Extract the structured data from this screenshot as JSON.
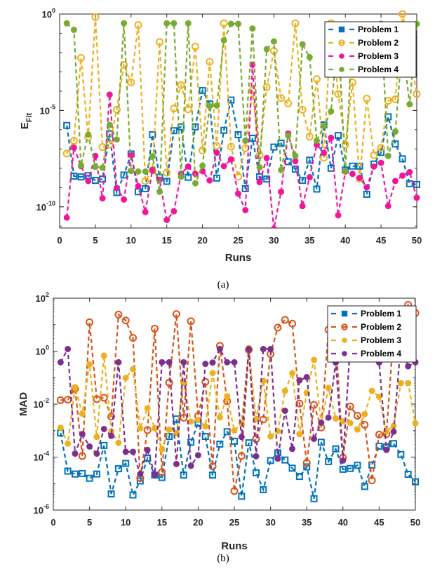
{
  "chart_data": [
    {
      "type": "line",
      "yscale": "log",
      "caption": "(a)",
      "xlabel": "Runs",
      "ylabel": "E",
      "ylabel_subscript": "Fit",
      "xlim": [
        0,
        50
      ],
      "ylim_log10": [
        -11.1,
        0
      ],
      "xticks": [
        0,
        5,
        10,
        15,
        20,
        25,
        30,
        35,
        40,
        45,
        50
      ],
      "ytick_base": "10",
      "yticks_log10": [
        0,
        -5,
        -10
      ],
      "legend_position": "top-right",
      "x": [
        1,
        2,
        3,
        4,
        5,
        6,
        7,
        8,
        9,
        10,
        11,
        12,
        13,
        14,
        15,
        16,
        17,
        18,
        19,
        20,
        21,
        22,
        23,
        24,
        25,
        26,
        27,
        28,
        29,
        30,
        31,
        32,
        33,
        34,
        35,
        36,
        37,
        38,
        39,
        40,
        41,
        42,
        43,
        44,
        45,
        46,
        47,
        48,
        49,
        50
      ],
      "series": [
        {
          "name": "Problem 1",
          "color": "#0072BD",
          "marker": "square-open",
          "values_log10": [
            -5.78,
            -8.41,
            -8.45,
            -8.38,
            -8.63,
            -8.56,
            -6.21,
            -9.26,
            -8.35,
            -7.26,
            -9.22,
            -9.06,
            -6.26,
            -8.47,
            -8.68,
            -6.05,
            -5.85,
            -8.47,
            -5.85,
            -3.97,
            -4.66,
            -8.51,
            -6.03,
            -4.46,
            -6.26,
            -9.06,
            -6.44,
            -8.44,
            -8.56,
            -6.9,
            -6.7,
            -7.66,
            -8.05,
            -8.63,
            -7.58,
            -9.08,
            -5.75,
            -8.0,
            -6.3,
            -8.09,
            -7.89,
            -7.89,
            -9.35,
            -7.78,
            -7.18,
            -5.33,
            -6.74,
            -7.51,
            -8.8,
            -8.84
          ]
        },
        {
          "name": "Problem 2",
          "color": "#EDB120",
          "marker": "circle-open",
          "values_log10": [
            -7.24,
            -6.57,
            -2.28,
            -6.38,
            -0.16,
            -6.9,
            -6.78,
            -4.96,
            -2.64,
            -3.54,
            -0.57,
            -8.66,
            -8.11,
            -1.45,
            -8.23,
            -4.9,
            -3.69,
            -4.94,
            -1.69,
            -7.08,
            -2.48,
            -6.84,
            -0.48,
            -6.88,
            -8.44,
            -6.96,
            -3.97,
            -7.32,
            -3.79,
            -1.91,
            -4.36,
            -4.64,
            -0.48,
            -4.96,
            -6.36,
            -3.37,
            -7.45,
            -0.48,
            -4.15,
            -6.78,
            -3.55,
            -8.54,
            -4.39,
            -7.32,
            -6.94,
            -4.5,
            -4.42,
            0.0,
            -1.85,
            -4.15
          ]
        },
        {
          "name": "Problem 3",
          "color": "#F0179B",
          "marker": "circle-filled",
          "values_log10": [
            -10.56,
            -6.93,
            -7.89,
            -8.66,
            -7.36,
            -9.56,
            -4.18,
            -9.02,
            -9.62,
            -7.32,
            -8.93,
            -10.27,
            -8.09,
            -8.6,
            -10.68,
            -10.23,
            -8.29,
            -7.91,
            -8.29,
            -8.15,
            -8.63,
            -7.2,
            -7.89,
            -7.54,
            -9.32,
            -10.17,
            -2.63,
            -8.72,
            -7.47,
            -11.14,
            -9.22,
            -6.2,
            -7.63,
            -9.96,
            -8.47,
            -6.78,
            -7.2,
            -6.42,
            -10.44,
            -8.17,
            -8.29,
            -8.5,
            -8.99,
            -7.91,
            -7.72,
            -9.96,
            -8.66,
            -8.38,
            -8.2,
            -9.53
          ]
        },
        {
          "name": "Problem 4",
          "color": "#77AC30",
          "marker": "circle-filled",
          "values_log10": [
            -0.48,
            -0.82,
            -7.85,
            -6.26,
            -7.93,
            -7.97,
            -5.75,
            -6.51,
            -0.48,
            -8.14,
            -8.17,
            -8.17,
            -7.38,
            -9.22,
            -0.48,
            -0.48,
            -8.44,
            -0.48,
            -8.78,
            -7.87,
            -4.78,
            -4.75,
            -1.36,
            -0.51,
            -0.51,
            -6.57,
            -0.75,
            -7.95,
            -1.82,
            -1.42,
            -8.09,
            -6.3,
            -7.36,
            -1.57,
            -2.24,
            -6.57,
            -5.81,
            -5.05,
            -1.0,
            -8.14,
            -1.0,
            -0.8,
            -1.2,
            -0.9,
            -0.5,
            -7.36,
            -6.1,
            -1.5,
            -4.68,
            -0.51
          ]
        }
      ]
    },
    {
      "type": "line",
      "yscale": "log",
      "caption": "(b)",
      "xlabel": "Runs",
      "ylabel": "MAD",
      "ylabel_subscript": "",
      "xlim": [
        0,
        50
      ],
      "ylim_log10": [
        -6,
        2
      ],
      "xticks": [
        0,
        5,
        10,
        15,
        20,
        25,
        30,
        35,
        40,
        45,
        50
      ],
      "ytick_base": "10",
      "yticks_log10": [
        2,
        0,
        -2,
        -4,
        -6
      ],
      "legend_position": "top-right",
      "x": [
        1,
        2,
        3,
        4,
        5,
        6,
        7,
        8,
        9,
        10,
        11,
        12,
        13,
        14,
        15,
        16,
        17,
        18,
        19,
        20,
        21,
        22,
        23,
        24,
        25,
        26,
        27,
        28,
        29,
        30,
        31,
        32,
        33,
        34,
        35,
        36,
        37,
        38,
        39,
        40,
        41,
        42,
        43,
        44,
        45,
        46,
        47,
        48,
        49,
        50
      ],
      "series": [
        {
          "name": "Problem 1",
          "color": "#0072BD",
          "marker": "square-open",
          "values_log10": [
            -3.09,
            -4.53,
            -4.64,
            -4.62,
            -4.8,
            -4.64,
            -3.56,
            -5.39,
            -4.44,
            -4.24,
            -5.43,
            -4.9,
            -4.04,
            -4.68,
            -4.77,
            -3.22,
            -2.56,
            -4.68,
            -3.44,
            -2.72,
            -3.22,
            -4.68,
            -3.51,
            -3.04,
            -3.4,
            -5.48,
            -3.46,
            -4.59,
            -5.23,
            -4.13,
            -3.84,
            -4.11,
            -4.42,
            -4.73,
            -4.37,
            -5.57,
            -3.44,
            -4.17,
            -3.69,
            -4.46,
            -4.43,
            -4.31,
            -5.11,
            -4.3,
            -3.59,
            -3.62,
            -3.49,
            -3.9,
            -4.65,
            -4.93
          ]
        },
        {
          "name": "Problem 2",
          "color": "#D95319",
          "marker": "circle-open",
          "values_log10": [
            -1.85,
            -1.83,
            -1.42,
            -3.96,
            1.09,
            -1.81,
            -1.76,
            -2.47,
            1.38,
            1.16,
            0.5,
            -4.79,
            -2.98,
            0.85,
            -4.57,
            -1.19,
            1.4,
            -2.51,
            1.13,
            -2.45,
            -1.16,
            -4.35,
            0.2,
            -1.89,
            -5.28,
            -3.96,
            0.05,
            -3.31,
            -2.58,
            -0.11,
            0.89,
            1.18,
            1.04,
            -1.98,
            -4.22,
            -2.03,
            -2.88,
            0.81,
            0.5,
            -4.02,
            -2.09,
            -2.44,
            -2.78,
            -4.88,
            -3.15,
            -3.13,
            0.7,
            0.9,
            1.75,
            1.44
          ]
        },
        {
          "name": "Problem 3",
          "color": "#EDB120",
          "marker": "circle-filled",
          "values_log10": [
            -2.89,
            -3.49,
            -1.36,
            -2.36,
            -0.5,
            -3.24,
            -0.17,
            -3.03,
            -3.46,
            -1.01,
            -0.68,
            -2.91,
            -2.16,
            -2.91,
            -3.71,
            -2.96,
            -3.09,
            -1.17,
            -2.66,
            -2.6,
            -2.84,
            -0.83,
            -2.5,
            -1.7,
            -3.0,
            -2.73,
            0.12,
            -2.56,
            -1.12,
            -3.22,
            -3.02,
            -1.5,
            -0.83,
            -3.13,
            -1.58,
            -0.33,
            -2.73,
            -1.39,
            -2.54,
            -2.65,
            -2.71,
            -2.96,
            -2.38,
            -1.5,
            -1.72,
            -3.02,
            -2.82,
            -1.21,
            -1.21,
            -2.72
          ]
        },
        {
          "name": "Problem 4",
          "color": "#7E2F8E",
          "marker": "circle-filled",
          "values_log10": [
            -0.42,
            0.08,
            -3.87,
            -3.13,
            -3.6,
            -3.87,
            -2.94,
            -3.2,
            -0.42,
            -3.8,
            -3.8,
            -4.64,
            -3.73,
            -4.66,
            -0.42,
            -0.42,
            -4.26,
            -0.42,
            -4.33,
            -3.93,
            -0.48,
            -0.43,
            0.08,
            -0.42,
            -0.42,
            -3.24,
            0.08,
            -3.97,
            0.08,
            0.08,
            -4.06,
            -2.25,
            -3.69,
            -1.1,
            -0.98,
            -3.31,
            -2.7,
            -2.51,
            -0.43,
            -4.13,
            0.2,
            0.3,
            0.3,
            0.2,
            -0.43,
            -3.73,
            -3.04,
            0.3,
            -0.57,
            -0.42
          ]
        }
      ]
    }
  ]
}
